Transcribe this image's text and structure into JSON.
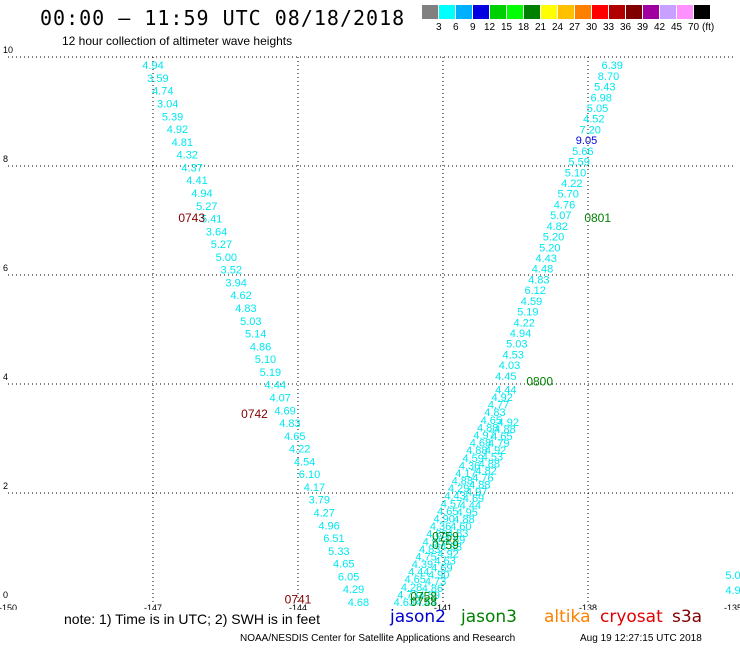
{
  "header": {
    "title": "00:00 – 11:59 UTC 08/18/2018",
    "subtitle": "12 hour collection of altimeter wave heights"
  },
  "colorbar": {
    "unit": "(ft)",
    "colors": [
      "#808080",
      "#00ffff",
      "#00b0ff",
      "#0000e0",
      "#00d000",
      "#00ff00",
      "#008000",
      "#ffff00",
      "#ffc000",
      "#ff8000",
      "#ff0000",
      "#b00000",
      "#800000",
      "#a000a0",
      "#c8a0ff",
      "#ff90ff",
      "#000000"
    ],
    "labels": [
      "3",
      "6",
      "9",
      "12",
      "15",
      "18",
      "21",
      "24",
      "27",
      "30",
      "33",
      "36",
      "39",
      "42",
      "45",
      "70"
    ]
  },
  "chart_data": {
    "type": "scatter",
    "title": "00:00 – 11:59 UTC 08/18/2018",
    "subtitle": "12 hour collection of altimeter wave heights",
    "xlim": [
      -150,
      -135
    ],
    "ylim": [
      0,
      10
    ],
    "x_ticks": [
      "-150",
      "-147",
      "-144",
      "-141",
      "-138",
      "-135"
    ],
    "y_ticks": [
      "0",
      "2",
      "4",
      "6",
      "8",
      "10"
    ],
    "grid": "dotted",
    "tracks": [
      {
        "satellite": "cryosat",
        "values": [
          "4.94",
          "3.59",
          "4.74",
          "3.04",
          "5.39",
          "4.92",
          "4.81",
          "4.32",
          "4.37",
          "4.41",
          "4.94",
          "5.27",
          "5.41",
          "3.64",
          "5.27",
          "5.00",
          "3.52",
          "3.94",
          "4.62",
          "4.83",
          "5.03",
          "5.14",
          "4.86",
          "5.10",
          "5.19",
          "4.44",
          "4.07",
          "4.69",
          "4.83",
          "4.65",
          "4.22",
          "4.54",
          "6.10",
          "4.17",
          "3.79",
          "4.27",
          "4.96",
          "6.51",
          "5.33",
          "4.65",
          "6.05",
          "4.29",
          "4.68"
        ],
        "lon_start": -147.0,
        "lat_start": 9.85,
        "lon_end": -142.75,
        "lat_end": 0.0
      },
      {
        "satellite": "jason3",
        "values": [
          "6.39",
          "8.70",
          "5.43",
          "6.98",
          "5.05",
          "4.52",
          "7.20",
          "9.05",
          "5.66",
          "5.59",
          "5.10",
          "4.22",
          "5.70",
          "4.76",
          "5.07",
          "4.82",
          "5.20",
          "5.20",
          "4.43",
          "4.48",
          "4.83",
          "6.12",
          "4.59",
          "5.19",
          "4.22",
          "4.94",
          "5.03",
          "4.53",
          "4.03",
          "4.45"
        ],
        "lon_start": -137.5,
        "lat_start": 9.85,
        "lon_end": -139.7,
        "lat_end": 4.15
      },
      {
        "satellite": "jason3",
        "values": [
          "4.44",
          "4.92",
          "4.77",
          "4.83",
          "4.65",
          "4.88",
          "4.97",
          "4.68",
          "4.88",
          "4.59",
          "4.36",
          "4.17",
          "4.88",
          "4.29",
          "4.43",
          "4.57",
          "4.65",
          "4.90",
          "4.36",
          "4.83",
          "4.95",
          "4.83",
          "4.75",
          "4.39",
          "4.44",
          "4.65",
          "4.28",
          "4.73",
          "4.63"
        ],
        "lon_start": -139.7,
        "lat_start": 3.9,
        "lon_end": -141.8,
        "lat_end": 0.0
      },
      {
        "satellite": "jason3",
        "values": [
          "4.92",
          "4.88",
          "4.65",
          "4.79",
          "4.92",
          "4.53",
          "4.88",
          "4.82",
          "4.76",
          "4.88",
          "4.97",
          "4.69",
          "4.44",
          "4.95",
          "4.88",
          "4.60",
          "4.83",
          "4.59",
          "4.83",
          "4.92",
          "4.63",
          "4.69",
          "4.90",
          "4.73",
          "4.86",
          "4.59",
          "4.44"
        ],
        "lon_start": -139.65,
        "lat_start": 3.3,
        "lon_end": -141.35,
        "lat_end": 0.0
      },
      {
        "satellite": "cryosat",
        "values": [
          "5.0",
          "4.9"
        ],
        "lon_start": -135.0,
        "lat_start": 0.5,
        "lon_end": -135.0,
        "lat_end": 0.22
      }
    ],
    "time_labels": [
      {
        "text": "0743",
        "satellite": "cryosat",
        "lon": -146.2,
        "lat": 7.05
      },
      {
        "text": "0742",
        "satellite": "cryosat",
        "lon": -144.9,
        "lat": 3.45
      },
      {
        "text": "0741",
        "satellite": "cryosat",
        "lon": -144.0,
        "lat": 0.05
      },
      {
        "text": "0801",
        "satellite": "jason3",
        "lon": -137.8,
        "lat": 7.05
      },
      {
        "text": "0800",
        "satellite": "jason3",
        "lon": -139.0,
        "lat": 4.05
      },
      {
        "text": "0759",
        "satellite": "jason3",
        "lon": -140.95,
        "lat": 1.05
      },
      {
        "text": "0759",
        "satellite": "jason3",
        "lon": -140.95,
        "lat": 1.2
      },
      {
        "text": "0758",
        "satellite": "jason3",
        "lon": -141.4,
        "lat": 0.0
      },
      {
        "text": "0758",
        "satellite": "jason3",
        "lon": -141.4,
        "lat": 0.1
      }
    ]
  },
  "footer": {
    "note": "note:  1) Time is in UTC;  2) SWH is in feet",
    "satellites": [
      {
        "name": "jason2",
        "color": "#0000d0"
      },
      {
        "name": "jason3",
        "color": "#008000"
      },
      {
        "name": "altika",
        "color": "#ff8000"
      },
      {
        "name": "cryosat",
        "color": "#e00000"
      },
      {
        "name": "s3a",
        "color": "#800000"
      }
    ],
    "credit": "NOAA/NESDIS Center for Satellite Applications and Research",
    "timestamp": "Aug 19 12:27:15 UTC 2018"
  }
}
